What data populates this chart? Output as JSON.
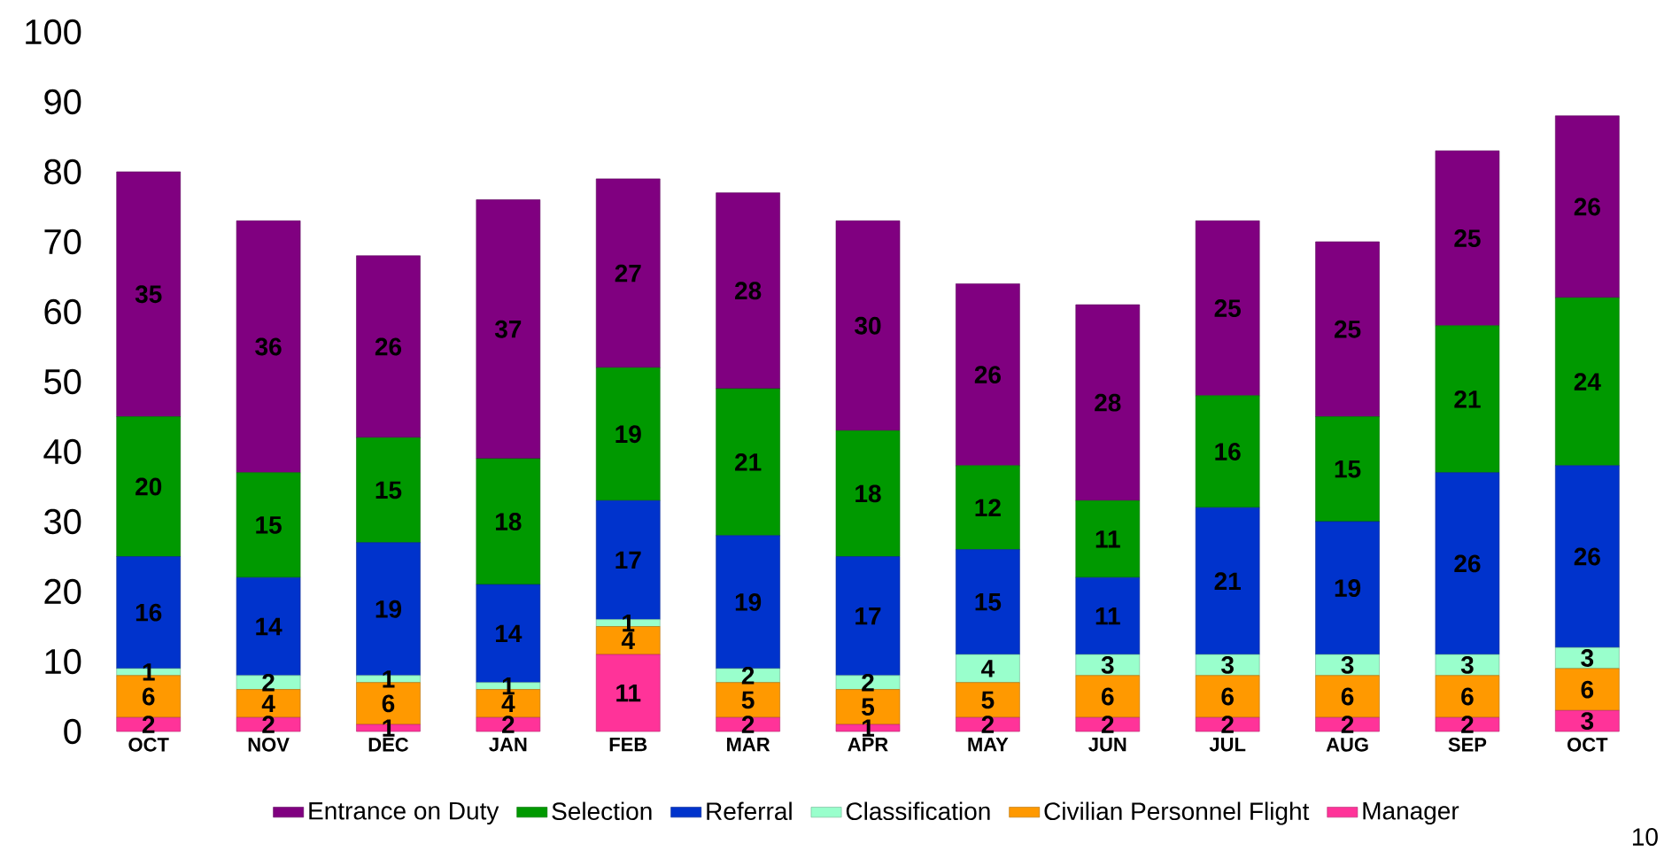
{
  "chart_data": {
    "type": "bar",
    "stacked": true,
    "categories": [
      "OCT",
      "NOV",
      "DEC",
      "JAN",
      "FEB",
      "MAR",
      "APR",
      "MAY",
      "JUN",
      "JUL",
      "AUG",
      "SEP",
      "OCT"
    ],
    "series": [
      {
        "name": "Manager",
        "color": "#ff3399",
        "values": [
          2,
          2,
          1,
          2,
          11,
          2,
          1,
          2,
          2,
          2,
          2,
          2,
          3
        ]
      },
      {
        "name": "Civilian Personnel Flight",
        "color": "#ff9900",
        "values": [
          6,
          4,
          6,
          4,
          4,
          5,
          5,
          5,
          6,
          6,
          6,
          6,
          6
        ]
      },
      {
        "name": "Classification",
        "color": "#99ffcc",
        "values": [
          1,
          2,
          1,
          1,
          1,
          2,
          2,
          4,
          3,
          3,
          3,
          3,
          3
        ]
      },
      {
        "name": "Referral",
        "color": "#0033cc",
        "values": [
          16,
          14,
          19,
          14,
          17,
          19,
          17,
          15,
          11,
          21,
          19,
          26,
          26
        ]
      },
      {
        "name": "Selection",
        "color": "#009900",
        "values": [
          20,
          15,
          15,
          18,
          19,
          21,
          18,
          12,
          11,
          16,
          15,
          21,
          24
        ]
      },
      {
        "name": "Entrance on Duty",
        "color": "#800080",
        "values": [
          35,
          36,
          26,
          37,
          27,
          28,
          30,
          26,
          28,
          25,
          25,
          25,
          26
        ]
      }
    ],
    "ylim": [
      0,
      100
    ],
    "yticks": [
      0,
      10,
      20,
      30,
      40,
      50,
      60,
      70,
      80,
      90,
      100
    ],
    "data_labels": true,
    "legend": "bottom",
    "grid": false,
    "annotations": [
      "10"
    ]
  }
}
